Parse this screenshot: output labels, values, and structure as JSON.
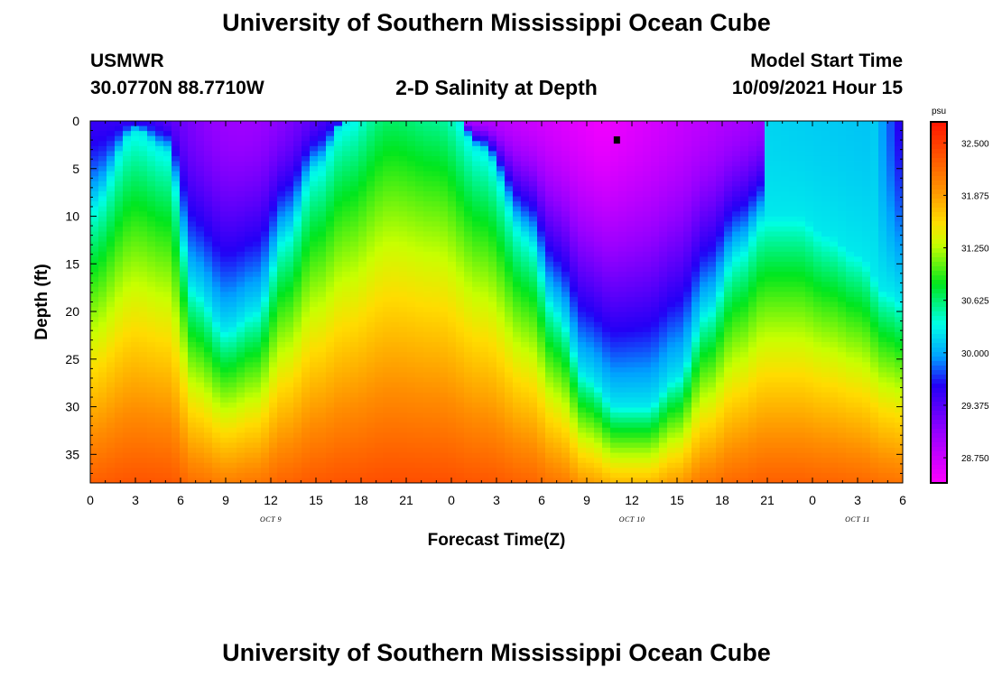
{
  "header": {
    "main_title": "University of Southern Mississippi Ocean Cube",
    "station_name": "USMWR",
    "station_coords": "30.0770N  88.7710W",
    "chart_title": "2-D Salinity at Depth",
    "model_start_label": "Model Start Time",
    "model_start_value": "10/09/2021 Hour 15"
  },
  "footer": {
    "title": "University of Southern Mississippi Ocean Cube"
  },
  "chart_data": {
    "type": "heatmap",
    "title": "2-D Salinity at Depth",
    "xlabel": "Forecast Time(Z)",
    "ylabel": "Depth (ft)",
    "x_tick_labels": [
      "0",
      "3",
      "6",
      "9",
      "12",
      "15",
      "18",
      "21",
      "0",
      "3",
      "6",
      "9",
      "12",
      "15",
      "18",
      "21",
      "0",
      "3",
      "6"
    ],
    "x_range_hours": [
      0,
      54
    ],
    "date_labels": [
      {
        "text": "OCT 9",
        "hour": 12
      },
      {
        "text": "OCT 10",
        "hour": 36
      },
      {
        "text": "OCT 11",
        "hour": 51
      }
    ],
    "y_ticks": [
      0,
      5,
      10,
      15,
      20,
      25,
      30,
      35
    ],
    "y_range_ft": [
      0,
      38
    ],
    "y_inverted": true,
    "colorbar": {
      "unit": "psu",
      "tick_labels": [
        "32.500",
        "31.875",
        "31.250",
        "30.625",
        "30.000",
        "29.375",
        "28.750"
      ],
      "min": 28.45,
      "max": 32.75
    },
    "surface_fresh_extent_ft": [
      {
        "hour": 0,
        "depth": 9
      },
      {
        "hour": 3,
        "depth": 1
      },
      {
        "hour": 5,
        "depth": 3
      },
      {
        "hour": 7,
        "depth": 18
      },
      {
        "hour": 9,
        "depth": 22
      },
      {
        "hour": 11,
        "depth": 20
      },
      {
        "hour": 13,
        "depth": 12
      },
      {
        "hour": 15,
        "depth": 5
      },
      {
        "hour": 17,
        "depth": 0
      },
      {
        "hour": 20,
        "depth": -6
      },
      {
        "hour": 23,
        "depth": -4
      },
      {
        "hour": 26,
        "depth": 3
      },
      {
        "hour": 29,
        "depth": 12
      },
      {
        "hour": 31,
        "depth": 20
      },
      {
        "hour": 33,
        "depth": 27
      },
      {
        "hour": 35,
        "depth": 30
      },
      {
        "hour": 37,
        "depth": 30
      },
      {
        "hour": 39,
        "depth": 27
      },
      {
        "hour": 41,
        "depth": 20
      },
      {
        "hour": 43,
        "depth": 14
      },
      {
        "hour": 45,
        "depth": 10
      },
      {
        "hour": 47,
        "depth": 10
      },
      {
        "hour": 49,
        "depth": 12
      },
      {
        "hour": 51,
        "depth": 14
      },
      {
        "hour": 53,
        "depth": 18
      },
      {
        "hour": 54,
        "depth": 19
      }
    ],
    "marker": {
      "hour": 35,
      "depth": 2
    }
  }
}
